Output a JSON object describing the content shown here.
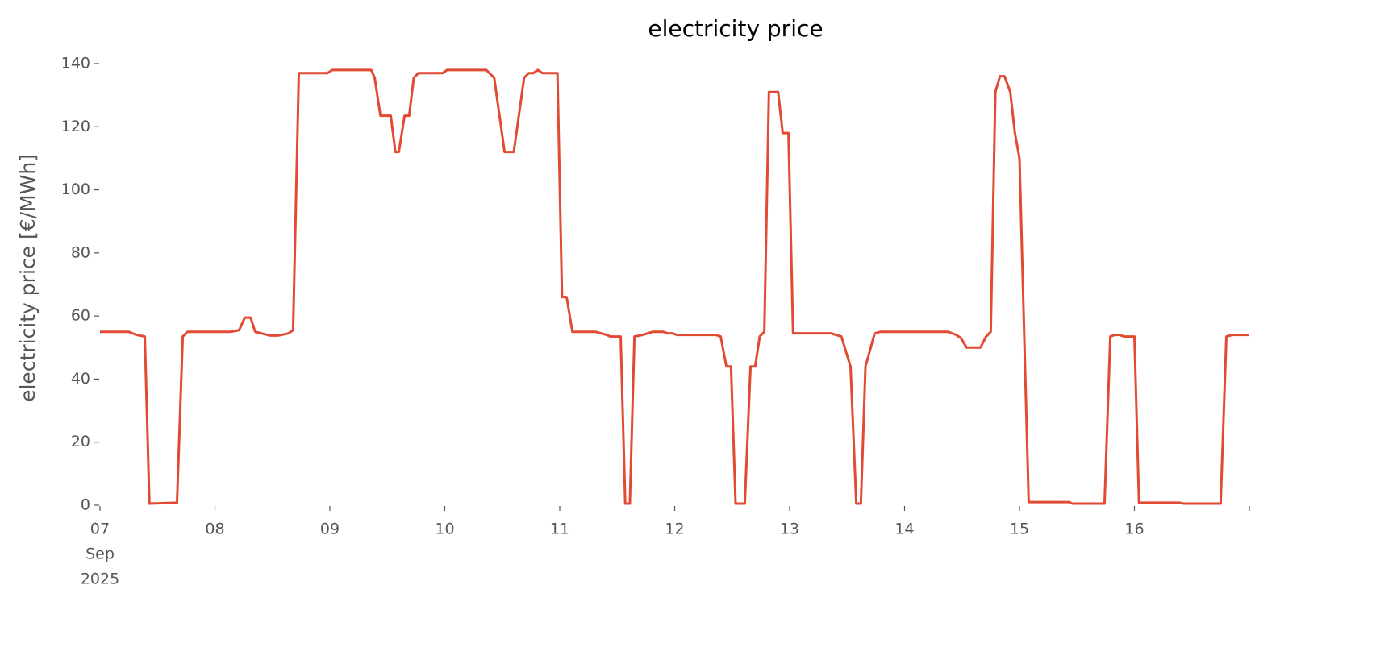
{
  "chart_data": {
    "type": "line",
    "title": "electricity price",
    "ylabel": "electricity price [€/MWh]",
    "x": [
      7.0,
      7.25,
      7.32,
      7.39,
      7.43,
      7.67,
      7.72,
      7.76,
      8.14,
      8.21,
      8.26,
      8.31,
      8.35,
      8.48,
      8.55,
      8.64,
      8.68,
      8.73,
      8.98,
      9.02,
      9.36,
      9.39,
      9.44,
      9.53,
      9.57,
      9.6,
      9.65,
      9.69,
      9.73,
      9.77,
      9.98,
      10.02,
      10.36,
      10.43,
      10.52,
      10.6,
      10.69,
      10.73,
      10.77,
      10.81,
      10.85,
      10.98,
      11.02,
      11.06,
      11.11,
      11.31,
      11.41,
      11.44,
      11.53,
      11.57,
      11.61,
      11.65,
      11.72,
      11.81,
      11.9,
      11.94,
      11.98,
      12.02,
      12.36,
      12.4,
      12.45,
      12.49,
      12.53,
      12.61,
      12.66,
      12.7,
      12.74,
      12.78,
      12.82,
      12.9,
      12.94,
      12.99,
      13.03,
      13.36,
      13.45,
      13.53,
      13.58,
      13.62,
      13.66,
      13.74,
      13.79,
      14.38,
      14.45,
      14.49,
      14.54,
      14.66,
      14.71,
      14.75,
      14.79,
      14.83,
      14.87,
      14.92,
      14.96,
      15.0,
      15.08,
      15.43,
      15.46,
      15.74,
      15.79,
      15.83,
      15.87,
      15.91,
      16.0,
      16.04,
      16.39,
      16.43,
      16.75,
      16.8,
      16.85,
      17.0
    ],
    "series": [
      {
        "name": "electricity price",
        "color": "#e24a33",
        "values": [
          55,
          55,
          54,
          53.5,
          0.5,
          0.8,
          53.5,
          55,
          55,
          55.5,
          59.5,
          59.5,
          55,
          53.8,
          53.8,
          54.5,
          55.5,
          137,
          137,
          138,
          138,
          135.5,
          123.5,
          123.5,
          112,
          112,
          123.5,
          123.5,
          135.5,
          137,
          137,
          138,
          138,
          135.5,
          112,
          112,
          135.5,
          137,
          137,
          138,
          137,
          137,
          66,
          66,
          55,
          55,
          54,
          53.5,
          53.5,
          0.5,
          0.5,
          53.5,
          54,
          55,
          55,
          54.5,
          54.5,
          54,
          54,
          53.5,
          44,
          44,
          0.5,
          0.5,
          44,
          44,
          53.5,
          55,
          131,
          131,
          118,
          118,
          54.5,
          54.5,
          53.5,
          44,
          0.5,
          0.5,
          44,
          54.5,
          55,
          55,
          54,
          53,
          50,
          50,
          53.5,
          55,
          131,
          136,
          136,
          131,
          118,
          110,
          1,
          1,
          0.5,
          0.5,
          53.5,
          54,
          54,
          53.5,
          53.5,
          0.8,
          0.8,
          0.5,
          0.5,
          53.5,
          54,
          54
        ]
      }
    ],
    "xlim": [
      7,
      17
    ],
    "xticks": [
      {
        "value": 7,
        "label": "07"
      },
      {
        "value": 8,
        "label": "08"
      },
      {
        "value": 9,
        "label": "09"
      },
      10,
      11,
      12,
      13,
      14,
      15,
      16
    ],
    "xtick_sublabels": [
      "Sep",
      "2025"
    ],
    "ylim": [
      0,
      140
    ],
    "yticks": [
      0,
      20,
      40,
      60,
      80,
      100,
      120,
      140
    ]
  }
}
